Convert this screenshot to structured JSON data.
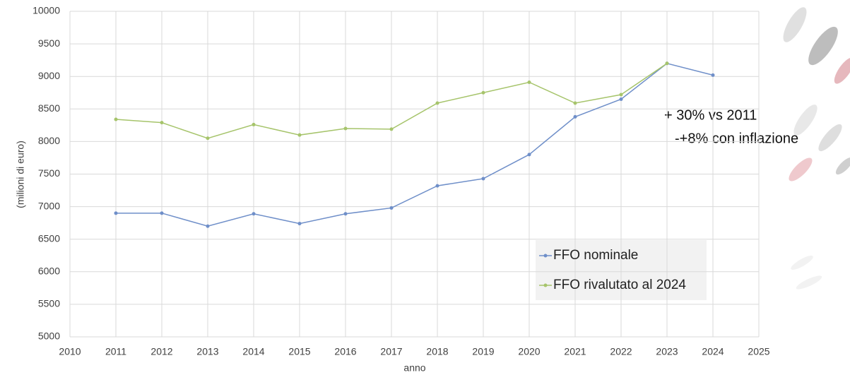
{
  "chart_data": {
    "type": "line",
    "x": [
      2011,
      2012,
      2013,
      2014,
      2015,
      2016,
      2017,
      2018,
      2019,
      2020,
      2021,
      2022,
      2023,
      2024
    ],
    "series": [
      {
        "name": "FFO nominale",
        "color": "#6f8fc9",
        "values": [
          6900,
          6900,
          6700,
          6890,
          6740,
          6890,
          6980,
          7320,
          7430,
          7800,
          8380,
          8650,
          9200,
          9020
        ]
      },
      {
        "name": "FFO rivalutato al 2024",
        "color": "#a6c46b",
        "values": [
          8340,
          8290,
          8050,
          8260,
          8100,
          8200,
          8190,
          8590,
          8750,
          8910,
          8590,
          8720,
          9200,
          null
        ]
      }
    ],
    "xlim": [
      2010,
      2025
    ],
    "xticks": [
      2010,
      2011,
      2012,
      2013,
      2014,
      2015,
      2016,
      2017,
      2018,
      2019,
      2020,
      2021,
      2022,
      2023,
      2024,
      2025
    ],
    "ylim": [
      5000,
      10000
    ],
    "yticks": [
      5000,
      5500,
      6000,
      6500,
      7000,
      7500,
      8000,
      8500,
      9000,
      9500,
      10000
    ],
    "ylabel": "(milioni di euro)",
    "xlabel": "anno",
    "grid": true,
    "annotations": [
      "+ 30% vs 2011",
      "-+8% con inflazione"
    ]
  }
}
